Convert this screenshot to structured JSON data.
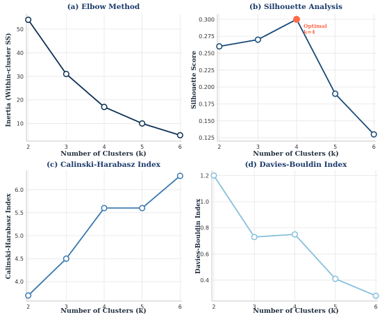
{
  "figure": {
    "background": "#ffffff"
  },
  "chart_data": [
    {
      "type": "line",
      "title": "(a) Elbow Method",
      "xlabel": "Number of Clusters (k)",
      "ylabel": "Inertia (Within-cluster SS)",
      "x": [
        2,
        3,
        4,
        5,
        6
      ],
      "series": [
        {
          "values": [
            54,
            31,
            17,
            10,
            5
          ],
          "color": "#0d2f52"
        }
      ],
      "xlim": [
        1.95,
        6.05
      ],
      "ylim": [
        2.5,
        56.5
      ],
      "xticks": [
        2,
        3,
        4,
        5,
        6
      ],
      "yticks": [
        10,
        20,
        30,
        40,
        50
      ],
      "grid": true
    },
    {
      "type": "line",
      "title": "(b) Silhouette Analysis",
      "xlabel": "Number of Clusters (k)",
      "ylabel": "Silhouette Score",
      "x": [
        2,
        3,
        4,
        5,
        6
      ],
      "series": [
        {
          "values": [
            0.26,
            0.27,
            0.3,
            0.19,
            0.13
          ],
          "color": "#184a78"
        }
      ],
      "highlight": {
        "x": 4,
        "y": 0.3,
        "color": "#ff6b4a"
      },
      "annotation": {
        "lines": [
          "Optimal",
          "k=4"
        ],
        "x": 4.18,
        "y": 0.2965,
        "color": "#ff6b4a"
      },
      "xlim": [
        1.95,
        6.05
      ],
      "ylim": [
        0.12,
        0.308
      ],
      "xticks": [
        2,
        3,
        4,
        5,
        6
      ],
      "yticks": [
        0.125,
        0.15,
        0.175,
        0.2,
        0.225,
        0.25,
        0.275,
        0.3
      ],
      "ytick_decimals": 3,
      "grid": true
    },
    {
      "type": "line",
      "title": "(c) Calinski-Harabasz Index",
      "xlabel": "Number of Clusters (k)",
      "ylabel": "Calinski-Harabasz Index",
      "x": [
        2,
        3,
        4,
        5,
        6
      ],
      "series": [
        {
          "values": [
            3.7,
            4.5,
            5.6,
            5.6,
            6.3
          ],
          "color": "#3a78b0"
        }
      ],
      "xlim": [
        1.95,
        6.05
      ],
      "ylim": [
        3.58,
        6.42
      ],
      "xticks": [
        2,
        3,
        4,
        5,
        6
      ],
      "yticks": [
        4.0,
        4.5,
        5.0,
        5.5,
        6.0
      ],
      "ytick_decimals": 1,
      "grid": true
    },
    {
      "type": "line",
      "title": "(d) Davies-Bouldin Index",
      "xlabel": "Number of Clusters (k)",
      "ylabel": "Davies-Bouldin Index",
      "x": [
        2,
        3,
        4,
        5,
        6
      ],
      "series": [
        {
          "values": [
            1.2,
            0.73,
            0.75,
            0.41,
            0.28
          ],
          "color": "#86c0dc"
        }
      ],
      "xlim": [
        1.95,
        6.05
      ],
      "ylim": [
        0.24,
        1.24
      ],
      "xticks": [
        2,
        3,
        4,
        5,
        6
      ],
      "yticks": [
        0.4,
        0.6,
        0.8,
        1.0,
        1.2
      ],
      "ytick_decimals": 1,
      "grid": true
    }
  ]
}
